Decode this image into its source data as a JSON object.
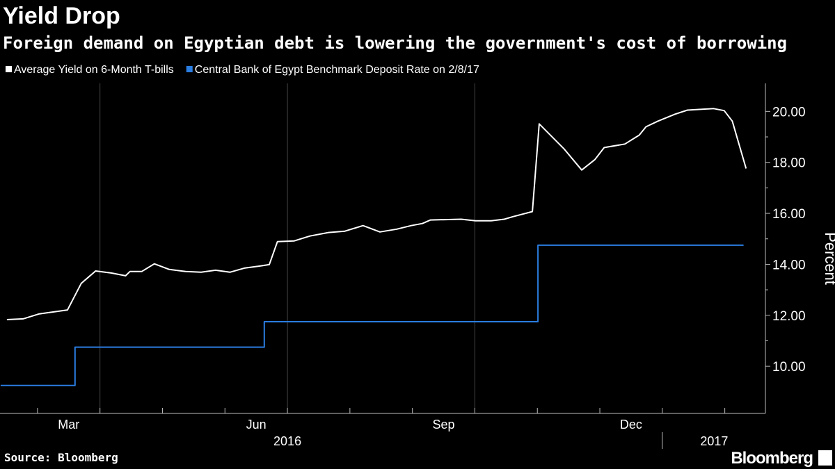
{
  "chart_data": {
    "type": "line",
    "title": "Yield Drop",
    "subtitle": "Foreign demand on Egyptian debt is lowering the government's cost of borrowing",
    "y_axis_label": "Percent",
    "source": "Source: Bloomberg",
    "brand": "Bloomberg",
    "series": [
      {
        "name": "Average Yield on 6-Month T-bills",
        "color": "#ffffff",
        "x": [
          1.51,
          1.77,
          2.02,
          2.25,
          2.48,
          2.7,
          2.93,
          3.18,
          3.41,
          3.48,
          3.67,
          3.87,
          4.11,
          4.37,
          4.62,
          4.85,
          5.08,
          5.31,
          5.55,
          5.71,
          5.84,
          6.11,
          6.36,
          6.66,
          6.92,
          7.21,
          7.48,
          7.75,
          7.98,
          8.16,
          8.29,
          8.78,
          9.01,
          9.26,
          9.47,
          9.61,
          9.92,
          10.03,
          10.43,
          10.71,
          10.92,
          11.07,
          11.4,
          11.63,
          11.74,
          11.93,
          12.2,
          12.4,
          12.82,
          12.99,
          13.12,
          13.34
        ],
        "values": [
          11.83,
          11.86,
          12.05,
          12.13,
          12.21,
          13.25,
          13.74,
          13.66,
          13.55,
          13.72,
          13.72,
          14.02,
          13.8,
          13.72,
          13.69,
          13.77,
          13.69,
          13.85,
          13.93,
          13.99,
          14.89,
          14.92,
          15.11,
          15.25,
          15.3,
          15.52,
          15.27,
          15.38,
          15.52,
          15.6,
          15.74,
          15.77,
          15.71,
          15.71,
          15.77,
          15.87,
          16.07,
          19.51,
          18.52,
          17.7,
          18.11,
          18.58,
          18.72,
          19.07,
          19.4,
          19.62,
          19.89,
          20.05,
          20.11,
          20.03,
          19.62,
          17.76
        ]
      },
      {
        "name": "Central Bank of Egypt Benchmark Deposit Rate  on 2/8/17",
        "color": "#2a7de1",
        "x": [
          1.41,
          2.6,
          2.6,
          5.63,
          5.63,
          10.01,
          10.01,
          13.3
        ],
        "values": [
          9.25,
          9.25,
          10.75,
          10.75,
          11.75,
          11.75,
          14.75,
          14.75
        ]
      }
    ],
    "xlim": [
      1.4,
      13.65
    ],
    "xticks": [
      {
        "value": 2.5,
        "label": "Mar"
      },
      {
        "value": 5.5,
        "label": "Jun"
      },
      {
        "value": 8.5,
        "label": "Sep"
      },
      {
        "value": 11.5,
        "label": "Dec"
      }
    ],
    "x_minor_ticks": [
      2,
      3,
      4,
      5,
      6,
      7,
      8,
      9,
      10,
      11,
      12,
      13
    ],
    "x_grid": [
      3,
      6,
      9
    ],
    "year_labels": [
      {
        "value": 6.0,
        "label": "2016"
      },
      {
        "value": 12.83,
        "label": "2017"
      }
    ],
    "year_divider": 12,
    "ylim": [
      8.15,
      21.1
    ],
    "yticks": [
      {
        "value": 10,
        "label": "10.00"
      },
      {
        "value": 12,
        "label": "12.00"
      },
      {
        "value": 14,
        "label": "14.00"
      },
      {
        "value": 16,
        "label": "16.00"
      },
      {
        "value": 18,
        "label": "18.00"
      },
      {
        "value": 20,
        "label": "20.00"
      }
    ],
    "y_minor_step": 1
  }
}
